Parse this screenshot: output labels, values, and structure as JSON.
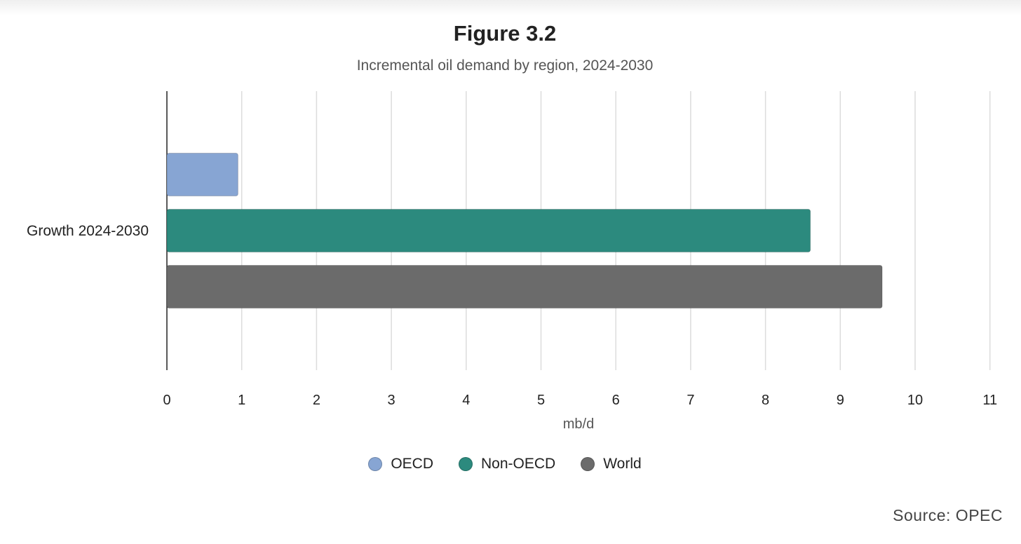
{
  "chart_data": {
    "type": "bar",
    "orientation": "horizontal",
    "title": "Figure 3.2",
    "subtitle": "Incremental oil demand by region, 2024-2030",
    "categories": [
      "Growth 2024-2030"
    ],
    "series": [
      {
        "name": "OECD",
        "values": [
          0.95
        ],
        "color": "#87a5d3"
      },
      {
        "name": "Non-OECD",
        "values": [
          8.6
        ],
        "color": "#2c8a7e"
      },
      {
        "name": "World",
        "values": [
          9.56
        ],
        "color": "#6b6b6b"
      }
    ],
    "xlabel": "mb/d",
    "ylabel": "",
    "xlim": [
      0,
      11
    ],
    "xticks": [
      "0",
      "1",
      "2",
      "3",
      "4",
      "5",
      "6",
      "7",
      "8",
      "9",
      "10",
      "11"
    ],
    "grid": true,
    "legend_position": "bottom"
  },
  "source": "Source: OPEC"
}
